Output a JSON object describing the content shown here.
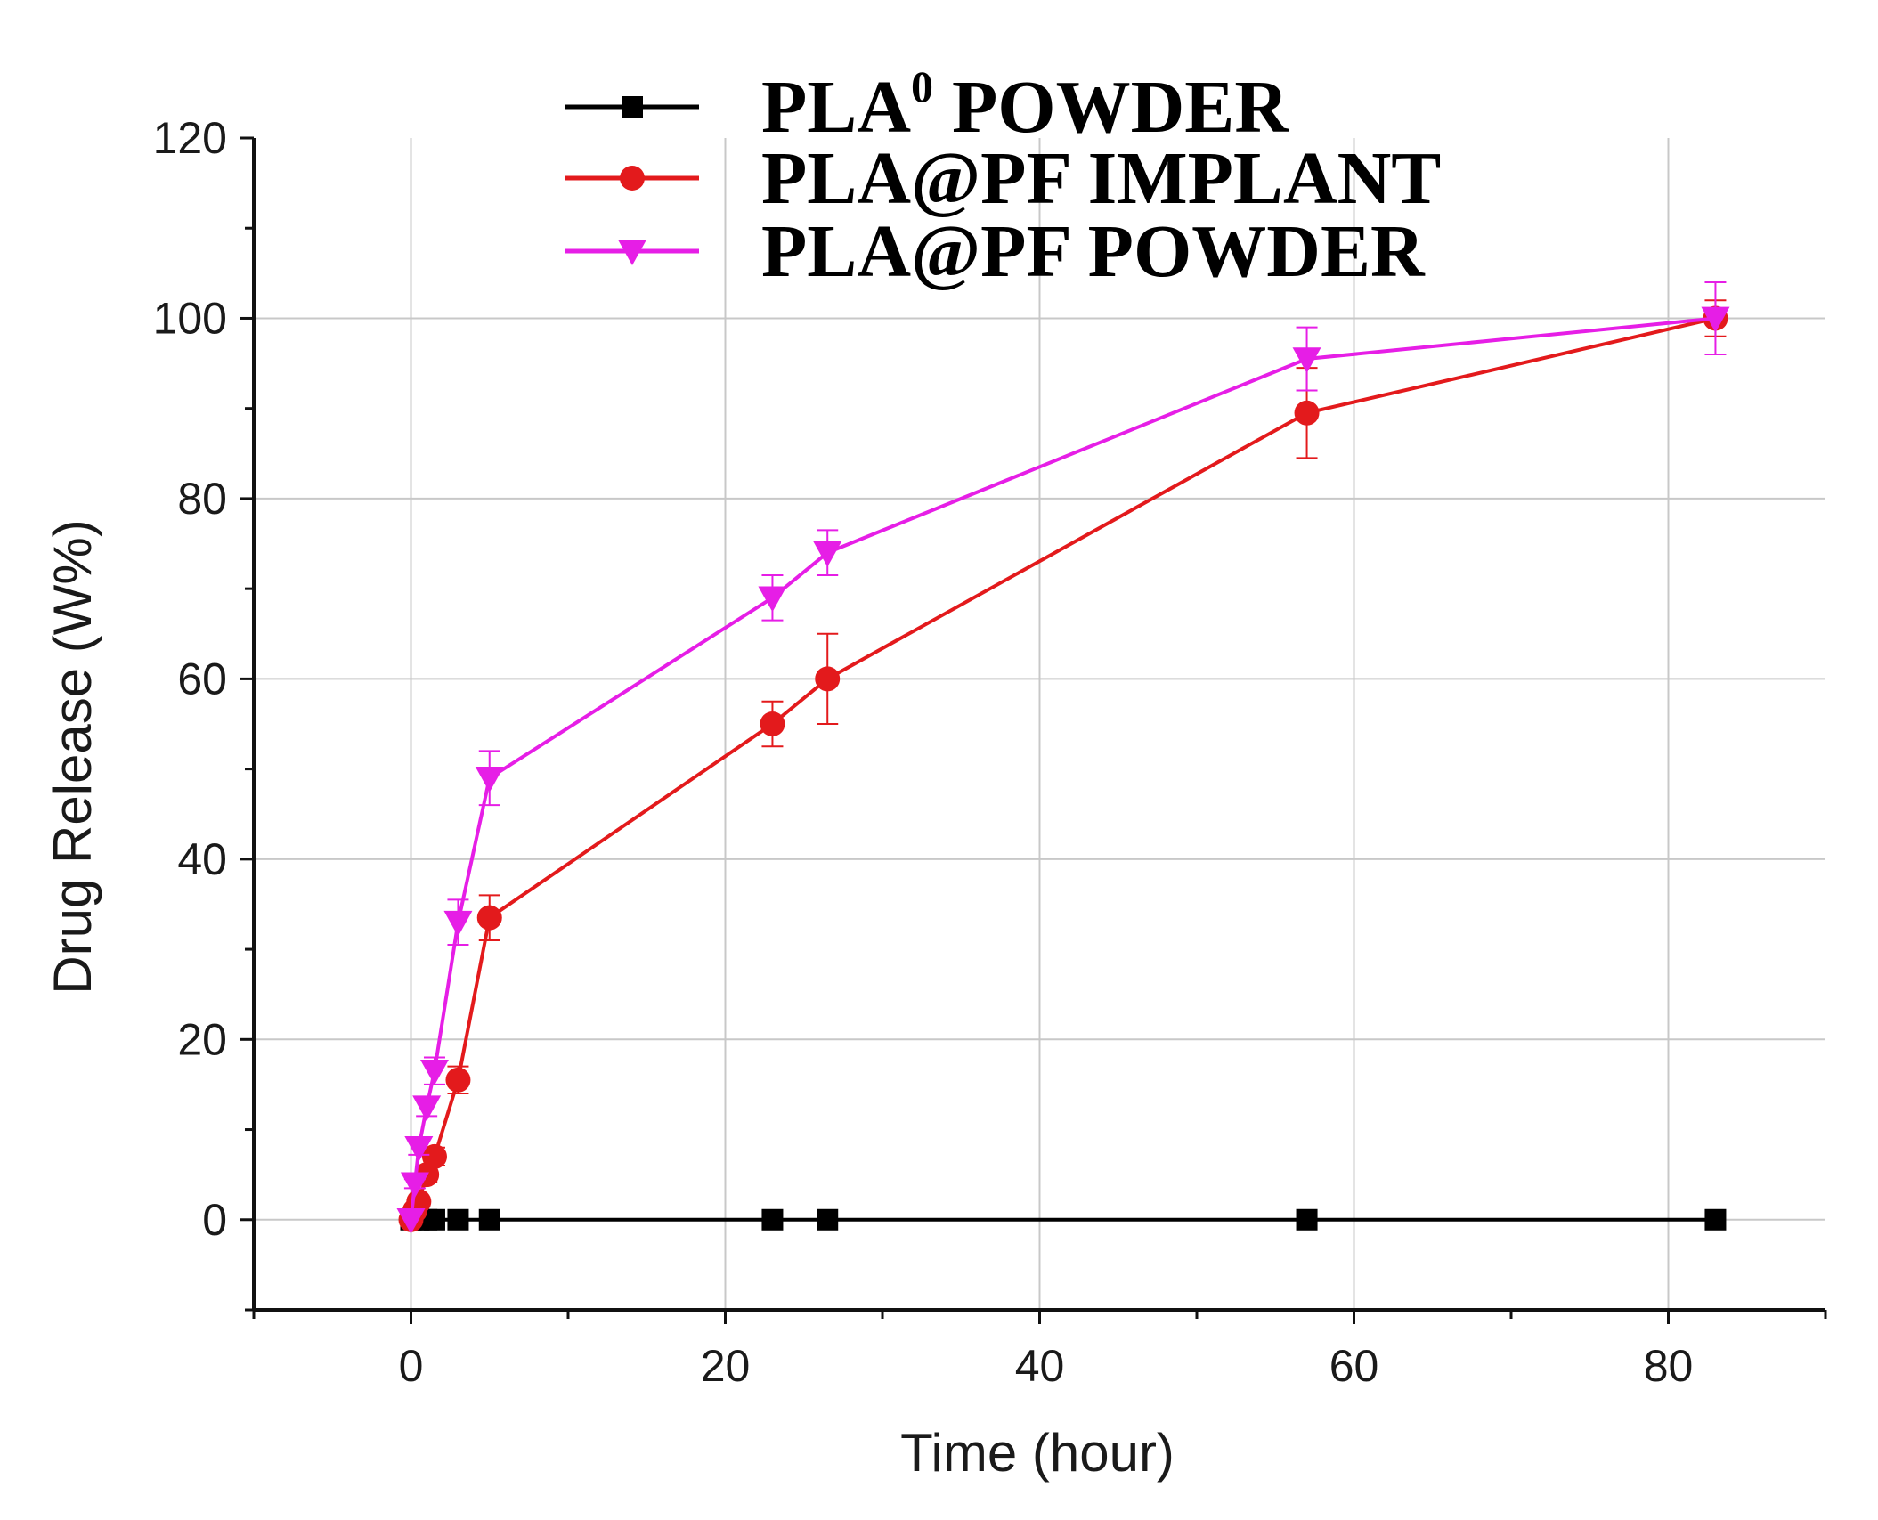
{
  "chart_data": {
    "type": "line",
    "xlabel": "Time (hour)",
    "ylabel": "Drug Release (W%)",
    "xlim": [
      -10,
      90
    ],
    "ylim": [
      -10,
      120
    ],
    "x_ticks": [
      0,
      20,
      40,
      60,
      80
    ],
    "y_ticks": [
      0,
      20,
      40,
      60,
      80,
      100,
      120
    ],
    "grid": true,
    "legend_position": "top-center",
    "series": [
      {
        "name": "PLA",
        "name_superscript": "0",
        "name_suffix": " POWDER",
        "color": "#000000",
        "marker": "square",
        "x": [
          0,
          0.5,
          1,
          1.5,
          3,
          5,
          23,
          26.5,
          57,
          83
        ],
        "y": [
          0,
          0,
          0,
          0,
          0,
          0,
          0,
          0,
          0,
          0
        ],
        "err": [
          0,
          0,
          0,
          0,
          0,
          0,
          0,
          0,
          0,
          0
        ]
      },
      {
        "name": "PLA@PF IMPLANT",
        "color": "#e31a1c",
        "marker": "circle",
        "x": [
          0,
          0.25,
          0.5,
          1,
          1.5,
          3,
          5,
          23,
          26.5,
          57,
          83
        ],
        "y": [
          0,
          1,
          2,
          5,
          7,
          15.5,
          33.5,
          55,
          60,
          89.5,
          100
        ],
        "err": [
          0,
          0,
          0.5,
          0.8,
          1,
          1.5,
          2.5,
          2.5,
          5,
          5,
          2
        ]
      },
      {
        "name": "PLA@PF POWDER",
        "color": "#e61ee6",
        "marker": "triangle-down",
        "x": [
          0,
          0.25,
          0.5,
          1,
          1.5,
          3,
          5,
          23,
          26.5,
          57,
          83
        ],
        "y": [
          0,
          4,
          8,
          12.5,
          16.5,
          33,
          49,
          69,
          74,
          95.5,
          100
        ],
        "err": [
          0,
          0.5,
          0.8,
          1,
          1.5,
          2.5,
          3,
          2.5,
          2.5,
          3.5,
          4
        ]
      }
    ]
  }
}
